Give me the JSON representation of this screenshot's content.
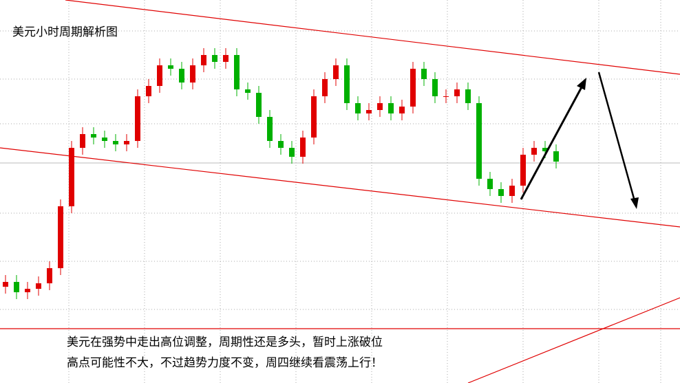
{
  "chart_data": {
    "type": "candlestick",
    "title": "美元小时周期解析图",
    "annotation": [
      "美元在强势中走出高位调整，周期性还是多头，暂时上涨破位",
      "高点可能性不大，不过趋势力度不变，周四继续看震荡上行！"
    ],
    "up_color": "#e00000",
    "down_color": "#00b000",
    "ylim": [
      0,
      557
    ],
    "open": [
      140,
      147,
      132,
      137,
      145,
      167,
      257,
      342,
      362,
      357,
      352,
      347,
      352,
      417,
      432,
      462,
      457,
      437,
      462,
      477,
      467,
      477,
      427,
      422,
      387,
      352,
      342,
      329,
      357,
      417,
      442,
      462,
      407,
      392,
      397,
      407,
      392,
      402,
      457,
      442,
      417,
      417,
      427,
      407,
      297,
      282,
      272,
      287,
      332,
      342,
      337
    ],
    "high": [
      157,
      157,
      147,
      155,
      177,
      267,
      352,
      372,
      372,
      367,
      362,
      362,
      427,
      442,
      472,
      472,
      467,
      472,
      487,
      487,
      487,
      487,
      437,
      432,
      397,
      362,
      352,
      367,
      427,
      452,
      472,
      472,
      417,
      407,
      417,
      417,
      412,
      467,
      467,
      452,
      427,
      437,
      437,
      417,
      307,
      292,
      297,
      342,
      352,
      352,
      347
    ],
    "low": [
      130,
      122,
      122,
      127,
      135,
      157,
      247,
      332,
      347,
      342,
      337,
      337,
      342,
      407,
      422,
      447,
      427,
      427,
      452,
      457,
      457,
      417,
      412,
      377,
      342,
      332,
      319,
      319,
      347,
      407,
      432,
      397,
      382,
      382,
      387,
      382,
      382,
      392,
      432,
      407,
      407,
      407,
      397,
      287,
      272,
      262,
      262,
      277,
      322,
      327,
      312
    ],
    "close": [
      147,
      132,
      137,
      145,
      167,
      257,
      342,
      362,
      357,
      352,
      347,
      352,
      417,
      432,
      462,
      457,
      437,
      462,
      477,
      467,
      477,
      427,
      422,
      387,
      352,
      342,
      329,
      357,
      417,
      442,
      462,
      407,
      392,
      397,
      407,
      392,
      402,
      457,
      442,
      417,
      417,
      427,
      407,
      297,
      282,
      272,
      287,
      332,
      342,
      337,
      322
    ]
  }
}
